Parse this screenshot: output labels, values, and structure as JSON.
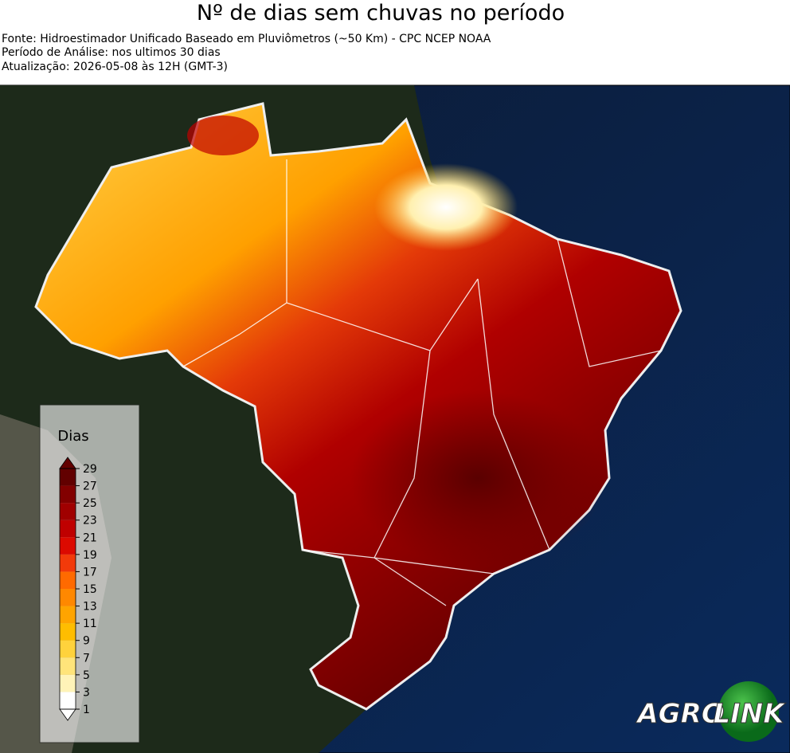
{
  "header": {
    "title": "Nº de dias sem chuvas no período",
    "lines": [
      "Fonte: Hidroestimador Unificado Baseado em Pluviômetros (~50 Km) - CPC NCEP NOAA",
      "Período de Análise: nos ultimos 30 dias",
      "Atualização: 2026-05-08 às 12H (GMT-3)"
    ]
  },
  "legend": {
    "title": "Dias",
    "ticks": [
      1,
      3,
      5,
      7,
      9,
      11,
      13,
      15,
      17,
      19,
      21,
      23,
      25,
      27,
      29
    ],
    "colors": [
      "#ffffff",
      "#fff3b8",
      "#ffe47a",
      "#ffd23c",
      "#ffbd00",
      "#ffa400",
      "#ff8800",
      "#ff6a00",
      "#f23a0a",
      "#dc0a00",
      "#bf0000",
      "#a00000",
      "#820000",
      "#620000"
    ]
  },
  "logo": {
    "left": "AGRO",
    "right": "LINK"
  }
}
